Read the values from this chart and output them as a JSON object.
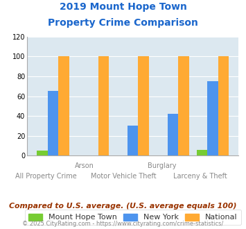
{
  "title_line1": "2019 Mount Hope Town",
  "title_line2": "Property Crime Comparison",
  "title_color": "#1a66cc",
  "categories": [
    "All Property Crime",
    "Arson",
    "Motor Vehicle Theft",
    "Burglary",
    "Larceny & Theft"
  ],
  "top_labels": [
    "",
    "Arson",
    "",
    "Burglary",
    ""
  ],
  "bottom_labels": [
    "All Property Crime",
    "",
    "Motor Vehicle Theft",
    "",
    "Larceny & Theft"
  ],
  "mount_hope_values": [
    5,
    0,
    0,
    0,
    6
  ],
  "new_york_values": [
    65,
    0,
    30,
    42,
    75
  ],
  "national_values": [
    100,
    100,
    100,
    100,
    100
  ],
  "mount_hope_color": "#77cc33",
  "new_york_color": "#4d94ee",
  "national_color": "#ffaa33",
  "ylim": [
    0,
    120
  ],
  "yticks": [
    0,
    20,
    40,
    60,
    80,
    100,
    120
  ],
  "plot_bg_color": "#dce8f0",
  "legend_labels": [
    "Mount Hope Town",
    "New York",
    "National"
  ],
  "legend_label_color": "#333333",
  "compare_text": "Compared to U.S. average. (U.S. average equals 100)",
  "compare_text_color": "#993300",
  "footer_text": "© 2025 CityRating.com - https://www.cityrating.com/crime-statistics/",
  "footer_color": "#888888",
  "footer_link_color": "#3366cc",
  "top_label_color": "#888888",
  "bottom_label_color": "#888888"
}
